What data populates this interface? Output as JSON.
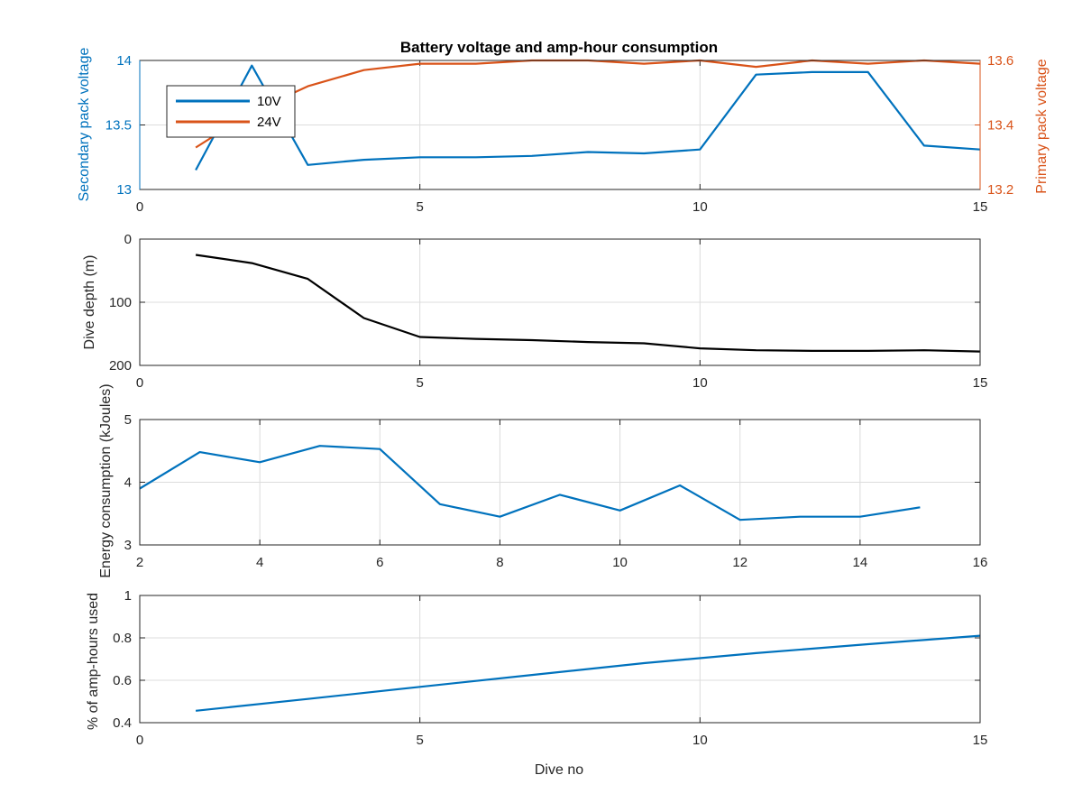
{
  "chart_data": [
    {
      "type": "line",
      "title": "Battery voltage and amp-hour consumption",
      "xlabel": "",
      "xlim": [
        0,
        15
      ],
      "xticks": [
        0,
        5,
        10,
        15
      ],
      "ylabel_left": "Secondary pack voltage",
      "ylim_left": [
        13,
        14
      ],
      "yticks_left": [
        "13",
        "13.5",
        "14"
      ],
      "ylabel_right": "Primary pack voltage",
      "ylim_right": [
        13.2,
        13.6
      ],
      "yticks_right": [
        "13.2",
        "13.4",
        "13.6"
      ],
      "colors": {
        "left_axis": "#0072bd",
        "right_axis": "#d95319"
      },
      "grid": true,
      "legend_position": "top-left",
      "series": [
        {
          "name": "10V",
          "axis": "left",
          "color": "#0072bd",
          "x": [
            1,
            2,
            3,
            4,
            5,
            6,
            7,
            8,
            9,
            10,
            11,
            12,
            13,
            14,
            15
          ],
          "y": [
            13.15,
            13.96,
            13.19,
            13.23,
            13.25,
            13.25,
            13.26,
            13.29,
            13.28,
            13.31,
            13.89,
            13.91,
            13.91,
            13.34,
            13.31
          ]
        },
        {
          "name": "24V",
          "axis": "right",
          "color": "#d95319",
          "x": [
            1,
            2,
            3,
            4,
            5,
            6,
            7,
            8,
            9,
            10,
            11,
            12,
            13,
            14,
            15
          ],
          "y": [
            13.33,
            13.44,
            13.52,
            13.57,
            13.59,
            13.59,
            13.6,
            13.6,
            13.59,
            13.6,
            13.58,
            13.6,
            13.59,
            13.6,
            13.59
          ]
        }
      ]
    },
    {
      "type": "line",
      "xlabel": "",
      "ylabel": "Dive depth (m)",
      "xlim": [
        0,
        15
      ],
      "xticks": [
        0,
        5,
        10,
        15
      ],
      "ylim": [
        0,
        200
      ],
      "y_reversed": true,
      "yticks": [
        "0",
        "100",
        "200"
      ],
      "grid": true,
      "series": [
        {
          "color": "#000000",
          "x": [
            1,
            2,
            3,
            4,
            5,
            6,
            7,
            8,
            9,
            10,
            11,
            12,
            13,
            14,
            15
          ],
          "y": [
            25,
            38,
            63,
            125,
            155,
            158,
            160,
            163,
            165,
            173,
            176,
            177,
            177,
            176,
            178
          ]
        }
      ]
    },
    {
      "type": "line",
      "xlabel": "",
      "ylabel": "Energy consumption (kJoules)",
      "xlim": [
        2,
        16
      ],
      "xticks": [
        2,
        4,
        6,
        8,
        10,
        12,
        14,
        16
      ],
      "ylim": [
        3,
        5
      ],
      "yticks": [
        "3",
        "4",
        "5"
      ],
      "grid": true,
      "series": [
        {
          "color": "#0072bd",
          "x": [
            2,
            3,
            4,
            5,
            6,
            7,
            8,
            9,
            10,
            11,
            12,
            13,
            14,
            15
          ],
          "y": [
            3.9,
            4.48,
            4.32,
            4.58,
            4.53,
            3.65,
            3.45,
            3.8,
            3.55,
            3.95,
            3.4,
            3.45,
            3.45,
            3.6
          ]
        }
      ]
    },
    {
      "type": "line",
      "xlabel": "Dive no",
      "ylabel": "% of amp-hours used",
      "xlim": [
        0,
        15
      ],
      "xticks": [
        0,
        5,
        10,
        15
      ],
      "ylim": [
        0.4,
        1
      ],
      "yticks": [
        "0.4",
        "0.6",
        "0.8",
        "1"
      ],
      "grid": true,
      "series": [
        {
          "color": "#0072bd",
          "x": [
            1,
            3,
            5,
            7,
            9,
            11,
            13,
            15
          ],
          "y": [
            0.456,
            0.512,
            0.569,
            0.625,
            0.681,
            0.728,
            0.77,
            0.81
          ]
        }
      ]
    }
  ]
}
